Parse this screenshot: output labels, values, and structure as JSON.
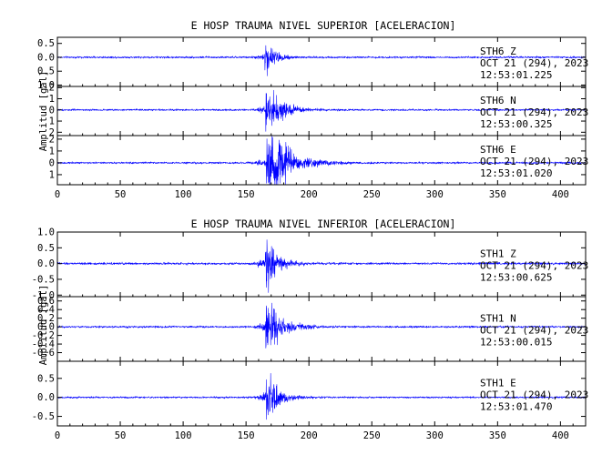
{
  "chart_data": [
    {
      "type": "line",
      "title": "E HOSP TRAUMA NIVEL SUPERIOR [ACELERACION]",
      "ylabel": "Amplitud [gal]",
      "xlim": [
        0,
        420
      ],
      "xticks": [
        0,
        50,
        100,
        150,
        200,
        250,
        300,
        350,
        400
      ],
      "event_onset_s": 165,
      "series": [
        {
          "name": "STH6   Z",
          "date": "OCT 21 (294), 2023",
          "time": "12:53:01.225",
          "ylim": [
            -1.05,
            0.72
          ],
          "yticks": [
            -1.0,
            -0.5,
            0.0,
            0.5
          ],
          "ytick_labels": [
            "1.0",
            "0.5",
            "0.0",
            "0.5"
          ],
          "peak": 0.55,
          "noise": 0.03,
          "coda": "short"
        },
        {
          "name": "STH6   N",
          "date": "OCT 21 (294), 2023",
          "time": "12:53:00.325",
          "ylim": [
            -2.3,
            2.1
          ],
          "yticks": [
            -2,
            -1,
            0,
            1,
            2
          ],
          "ytick_labels": [
            "2",
            "1",
            "0",
            "1",
            "2"
          ],
          "peak": 1.9,
          "noise": 0.07,
          "coda": "medium"
        },
        {
          "name": "STH6   E",
          "date": "OCT 21 (294), 2023",
          "time": "12:53:01.020",
          "ylim": [
            -1.85,
            2.3
          ],
          "yticks": [
            -1,
            0,
            1,
            2
          ],
          "ytick_labels": [
            "1",
            "0",
            "1",
            "2"
          ],
          "peak": 2.0,
          "noise": 0.07,
          "coda": "long"
        }
      ]
    },
    {
      "type": "line",
      "title": "E HOSP TRAUMA NIVEL INFERIOR [ACELERACION]",
      "ylabel": "Amplitud [gal]",
      "xlim": [
        0,
        420
      ],
      "xticks": [
        0,
        50,
        100,
        150,
        200,
        250,
        300,
        350,
        400
      ],
      "event_onset_s": 165,
      "series": [
        {
          "name": "STH1   Z",
          "date": "OCT 21 (294), 2023",
          "time": "12:53:00.625",
          "ylim": [
            -1.05,
            1.0
          ],
          "yticks": [
            -1.0,
            -0.5,
            0.0,
            0.5,
            1.0
          ],
          "ytick_labels": [
            "-1.0",
            "-0.5",
            "0.0",
            "0.5",
            "1.0"
          ],
          "peak": 0.95,
          "noise": 0.03,
          "coda": "short"
        },
        {
          "name": "STH1   N",
          "date": "OCT 21 (294), 2023",
          "time": "12:53:00.015",
          "ylim": [
            -0.8,
            0.7
          ],
          "yticks": [
            -0.6,
            -0.4,
            -0.2,
            0.0,
            0.2,
            0.4,
            0.6
          ],
          "ytick_labels": [
            "-0.6",
            "-0.4",
            "-0.2",
            "0.0",
            "0.2",
            "0.4",
            "0.6"
          ],
          "peak": 0.62,
          "noise": 0.02,
          "coda": "medium"
        },
        {
          "name": "STH1   E",
          "date": "OCT 21 (294), 2023",
          "time": "12:53:01.470",
          "ylim": [
            -0.75,
            0.95
          ],
          "yticks": [
            -0.5,
            0.0,
            0.5
          ],
          "ytick_labels": [
            "-0.5",
            "0.0",
            "0.5"
          ],
          "peak": 0.78,
          "noise": 0.02,
          "coda": "short"
        }
      ]
    }
  ],
  "colors": {
    "trace": "#0000ff",
    "axes": "#000000",
    "background": "#ffffff"
  }
}
